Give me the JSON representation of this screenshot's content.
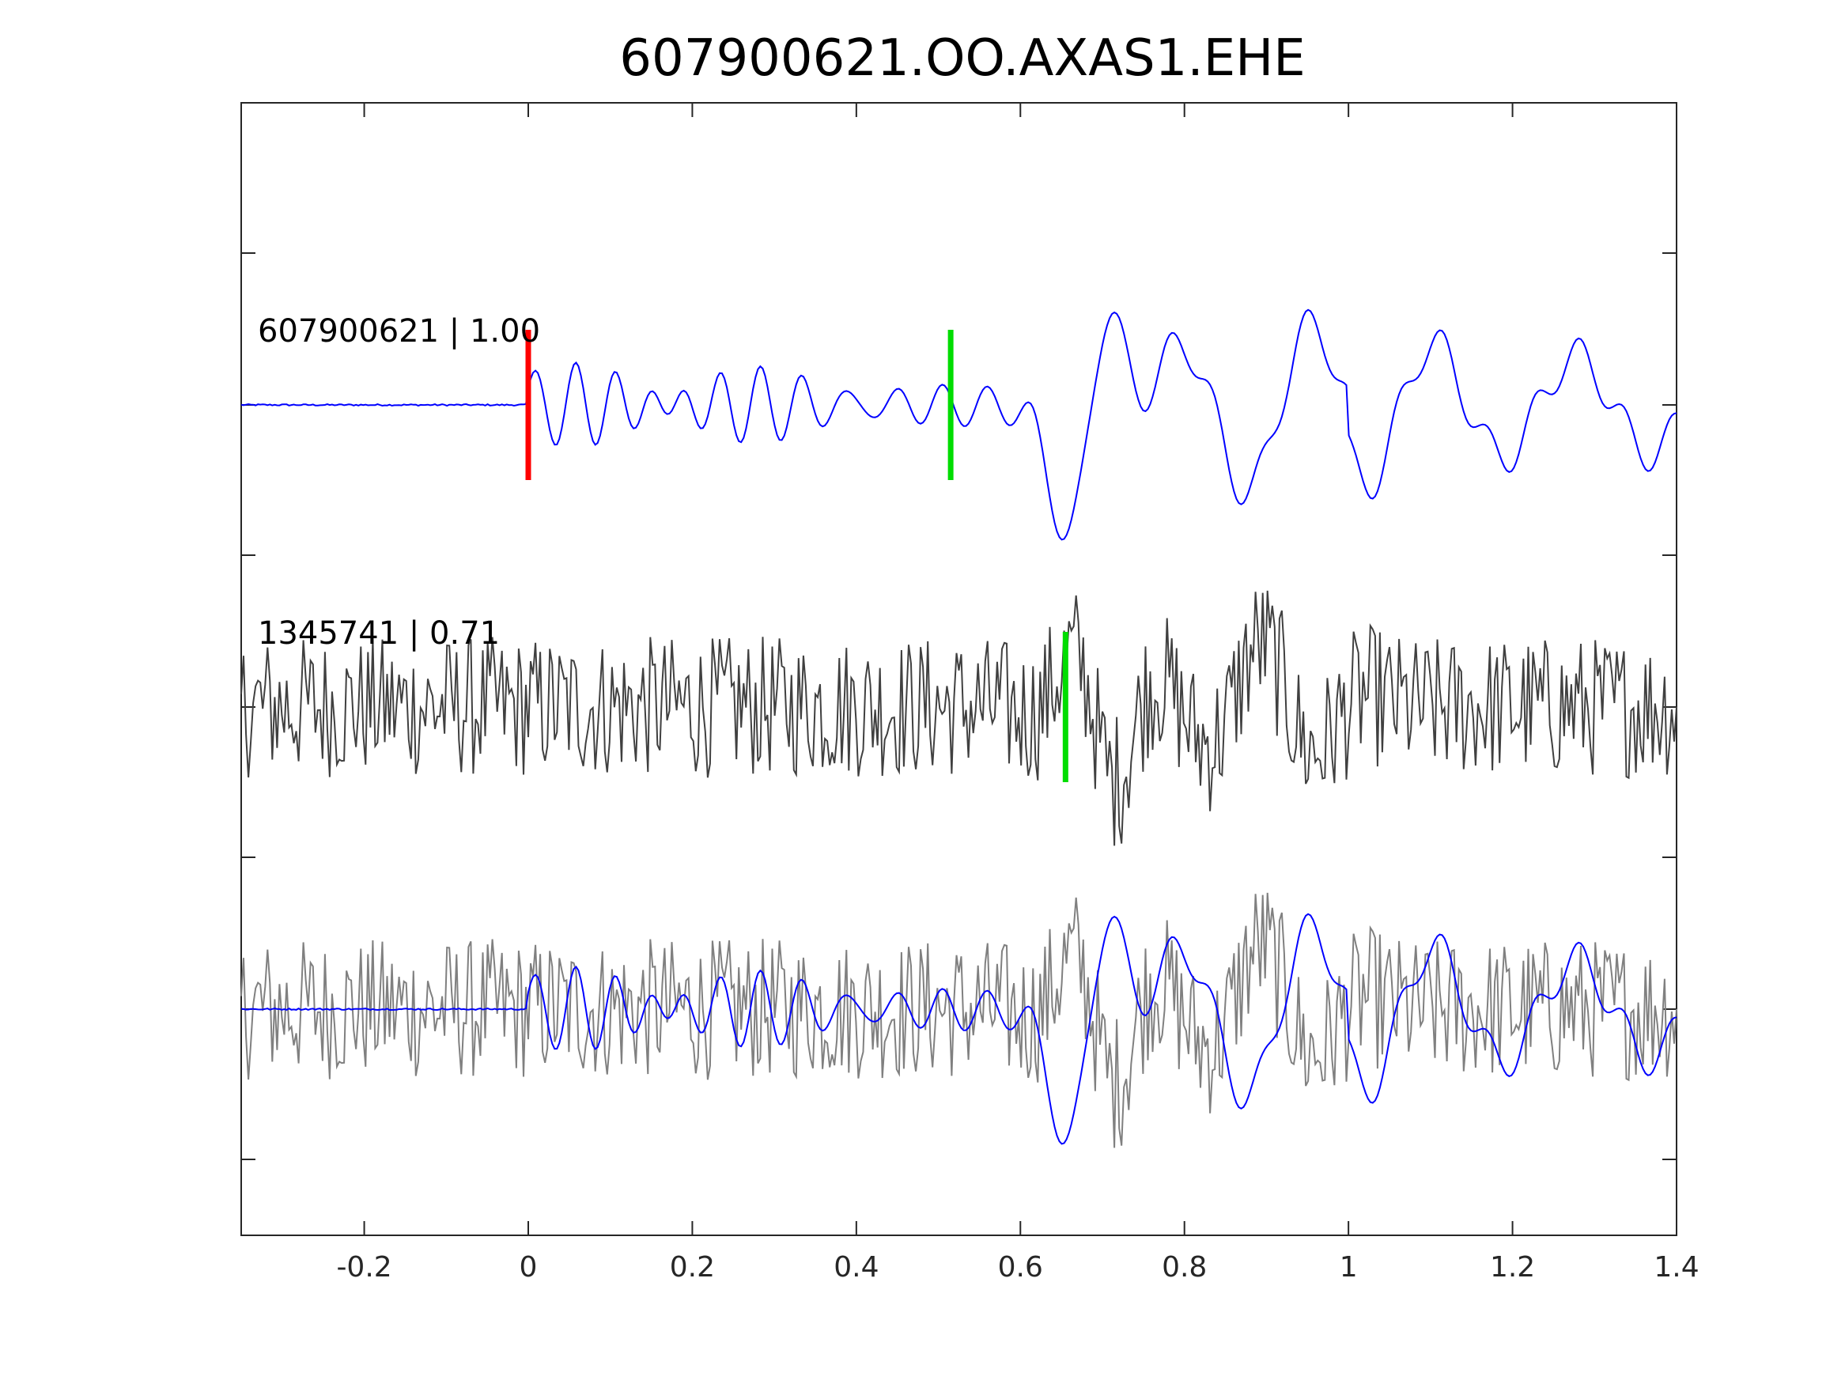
{
  "chart_data": {
    "type": "line",
    "title": "607900621.OO.AXAS1.EHE",
    "xlabel": "",
    "ylabel": "",
    "xlim": [
      -0.35,
      1.4
    ],
    "xticks": [
      "-0.2",
      "0",
      "0.2",
      "0.4",
      "0.6",
      "0.8",
      "1",
      "1.2",
      "1.4"
    ],
    "xtick_values": [
      -0.2,
      0,
      0.2,
      0.4,
      0.6,
      0.8,
      1.0,
      1.2,
      1.4
    ],
    "grid": false,
    "legend": "none",
    "traces": [
      {
        "label": "607900621 | 1.00",
        "color": "#0000ff",
        "row": 0,
        "markers": [
          {
            "x": 0.0,
            "color": "#ff0000"
          },
          {
            "x": 0.515,
            "color": "#00dd00"
          }
        ]
      },
      {
        "label": "1345741 | 0.71",
        "color": "#404040",
        "row": 1,
        "markers": [
          {
            "x": 0.655,
            "color": "#00dd00"
          }
        ]
      },
      {
        "label": "",
        "color": "#808080",
        "overlay_color": "#0000ff",
        "row": 2,
        "markers": []
      }
    ]
  }
}
